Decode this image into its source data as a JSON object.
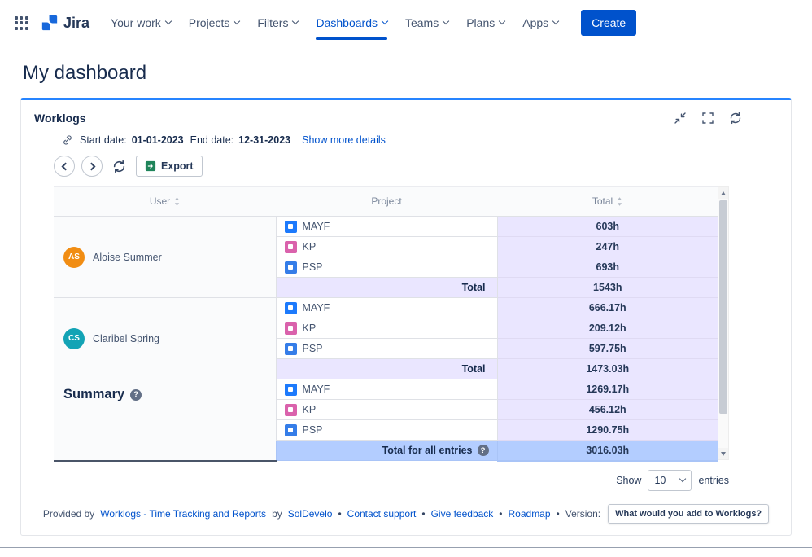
{
  "icons": {
    "info_glyph": "?"
  },
  "colors": {
    "accent_blue": "#0052CC",
    "panel_top_border": "#2684FF",
    "total_column_bg": "#EAE6FF",
    "grand_total_row_bg": "#B3CDFF",
    "table_header_bg": "#FAFBFC"
  },
  "nav": {
    "logo_text": "Jira",
    "items": [
      {
        "label": "Your work"
      },
      {
        "label": "Projects"
      },
      {
        "label": "Filters"
      },
      {
        "label": "Dashboards",
        "active": true
      },
      {
        "label": "Teams"
      },
      {
        "label": "Plans"
      },
      {
        "label": "Apps"
      }
    ],
    "create_label": "Create"
  },
  "page": {
    "title": "My dashboard"
  },
  "gadget": {
    "title": "Worklogs",
    "date_bar": {
      "start_label": "Start date:",
      "start_value": "01-01-2023",
      "end_label": "End date:",
      "end_value": "12-31-2023",
      "details_link": "Show more details"
    },
    "toolbar": {
      "export_label": "Export"
    },
    "table": {
      "headers": {
        "user": "User",
        "project": "Project",
        "total": "Total"
      },
      "groups": [
        {
          "user": "Aloise Summer",
          "initials": "AS",
          "avatar_color": "#F18D13",
          "rows": [
            {
              "project": "MAYF",
              "icon_color": "#1D7AFC",
              "total": "603h"
            },
            {
              "project": "KP",
              "icon_color": "#DA62AC",
              "total": "247h"
            },
            {
              "project": "PSP",
              "icon_color": "#357DE8",
              "total": "693h"
            }
          ],
          "total_label": "Total",
          "total_value": "1543h"
        },
        {
          "user": "Claribel Spring",
          "initials": "CS",
          "avatar_color": "#13A3B5",
          "rows": [
            {
              "project": "MAYF",
              "icon_color": "#1D7AFC",
              "total": "666.17h"
            },
            {
              "project": "KP",
              "icon_color": "#DA62AC",
              "total": "209.12h"
            },
            {
              "project": "PSP",
              "icon_color": "#357DE8",
              "total": "597.75h"
            }
          ],
          "total_label": "Total",
          "total_value": "1473.03h"
        }
      ],
      "summary": {
        "label": "Summary",
        "rows": [
          {
            "project": "MAYF",
            "icon_color": "#1D7AFC",
            "total": "1269.17h"
          },
          {
            "project": "KP",
            "icon_color": "#DA62AC",
            "total": "456.12h"
          },
          {
            "project": "PSP",
            "icon_color": "#357DE8",
            "total": "1290.75h"
          }
        ],
        "total_label": "Total for all entries",
        "total_value": "3016.03h"
      }
    },
    "pagination": {
      "show_label": "Show",
      "page_size": "10",
      "entries_label": "entries"
    },
    "footer": {
      "provided_by": "Provided by",
      "product_link": "Worklogs - Time Tracking and Reports",
      "by": "by",
      "company_link": "SolDevelo",
      "links": [
        "Contact support",
        "Give feedback",
        "Roadmap"
      ],
      "version_label": "Version:",
      "version_tooltip": "What would you add to Worklogs?"
    }
  }
}
